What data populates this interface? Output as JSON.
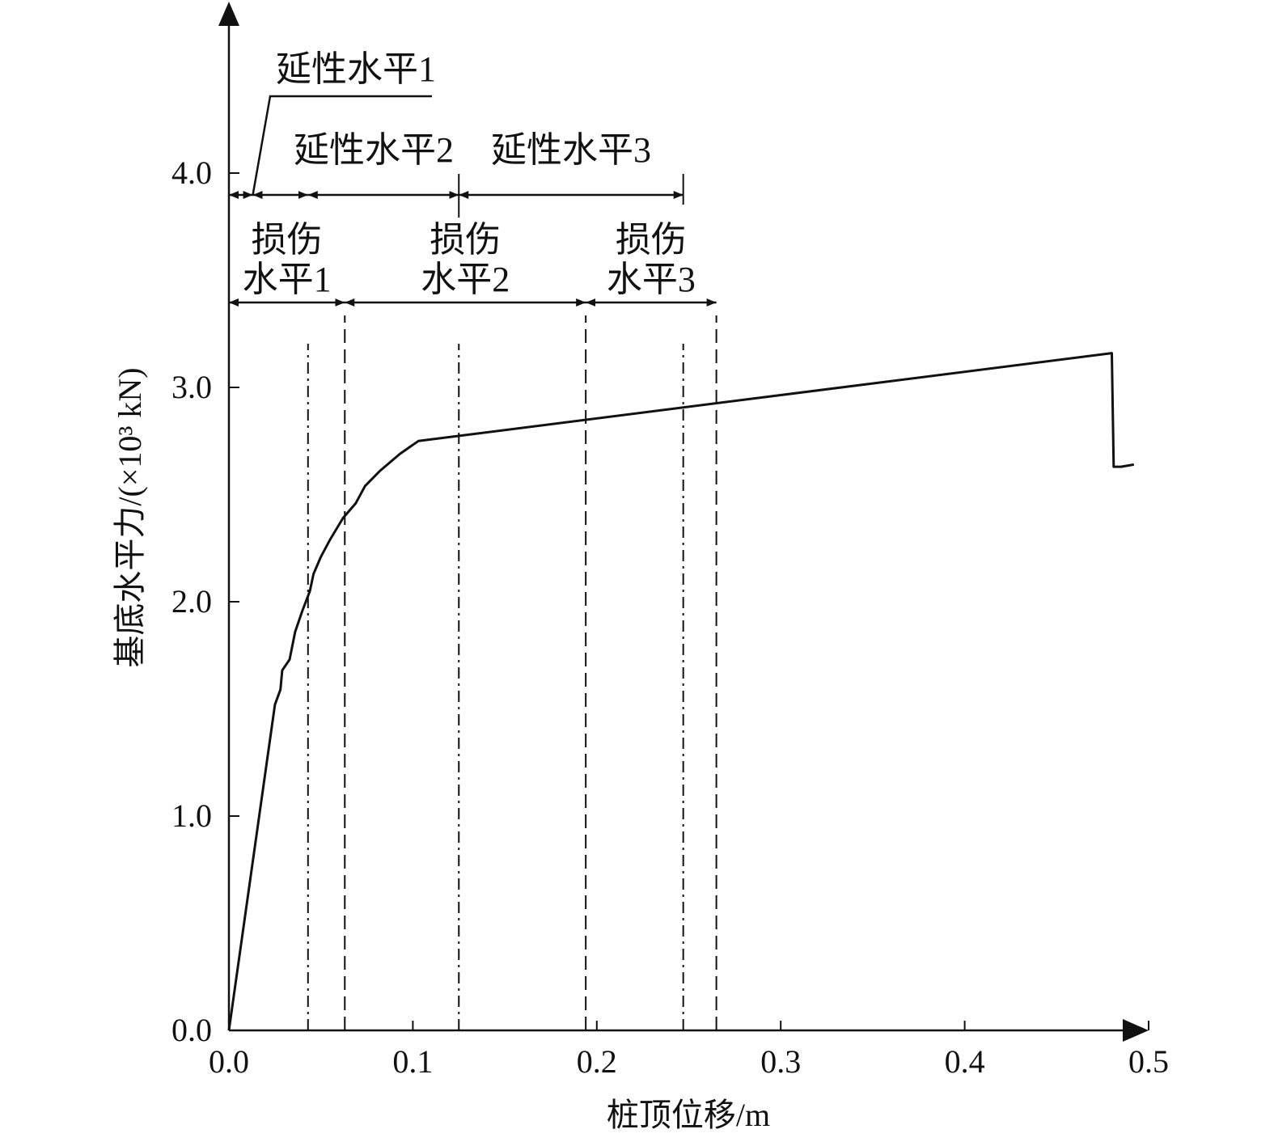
{
  "chart_data": {
    "type": "line",
    "xlabel": "桩顶位移/m",
    "ylabel": "基底水平力/(×10³ kN)",
    "xlim": [
      0,
      0.5
    ],
    "ylim": [
      0,
      4.6
    ],
    "x_ticks": [
      "0.0",
      "0.1",
      "0.2",
      "0.3",
      "0.4",
      "0.5"
    ],
    "y_ticks": [
      "0.0",
      "1.0",
      "2.0",
      "3.0",
      "4.0"
    ],
    "grid": false,
    "series": [
      {
        "points": [
          [
            0.0,
            0.0
          ],
          [
            0.025,
            1.52
          ],
          [
            0.028,
            1.59
          ],
          [
            0.029,
            1.68
          ],
          [
            0.033,
            1.73
          ],
          [
            0.036,
            1.86
          ],
          [
            0.04,
            1.96
          ],
          [
            0.044,
            2.05
          ],
          [
            0.046,
            2.13
          ],
          [
            0.05,
            2.21
          ],
          [
            0.055,
            2.29
          ],
          [
            0.062,
            2.39
          ],
          [
            0.069,
            2.46
          ],
          [
            0.074,
            2.54
          ],
          [
            0.082,
            2.61
          ],
          [
            0.093,
            2.69
          ],
          [
            0.103,
            2.75
          ],
          [
            0.48,
            3.16
          ],
          [
            0.481,
            2.63
          ],
          [
            0.485,
            2.63
          ],
          [
            0.492,
            2.64
          ]
        ]
      }
    ],
    "vertical_markers": [
      {
        "x": 0.043,
        "style": "dash-dot"
      },
      {
        "x": 0.125,
        "style": "dash-dot"
      },
      {
        "x": 0.247,
        "style": "dash-dot"
      },
      {
        "x": 0.063,
        "style": "dashed"
      },
      {
        "x": 0.194,
        "style": "dashed"
      },
      {
        "x": 0.265,
        "style": "dashed"
      }
    ],
    "ductility_levels": [
      {
        "label": "延性水平1",
        "from": 0.0,
        "to": 0.013
      },
      {
        "label": "延性水平2",
        "from": 0.043,
        "to": 0.125
      },
      {
        "label": "延性水平3",
        "from": 0.125,
        "to": 0.247
      }
    ],
    "damage_levels": [
      {
        "label_line1": "损伤",
        "label_line2": "水平1",
        "from": 0.0,
        "to": 0.063
      },
      {
        "label_line1": "损伤",
        "label_line2": "水平2",
        "from": 0.063,
        "to": 0.194
      },
      {
        "label_line1": "损伤",
        "label_line2": "水平3",
        "from": 0.194,
        "to": 0.265
      }
    ]
  }
}
